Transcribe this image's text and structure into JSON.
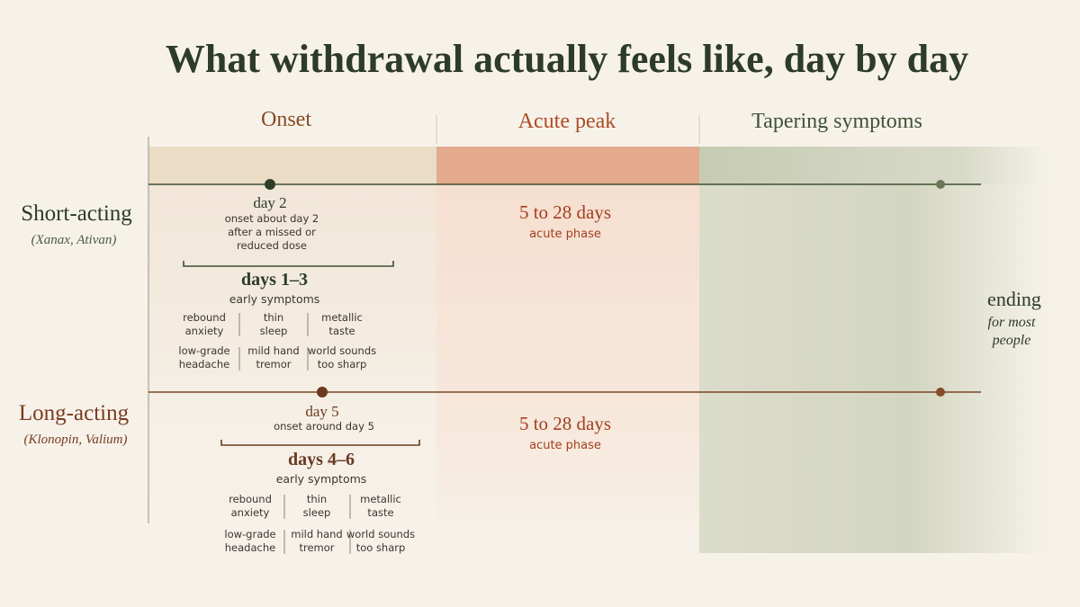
{
  "title": "What withdrawal actually feels like, day by day",
  "phases": [
    "Onset",
    "Acute peak",
    "Tapering symptoms"
  ],
  "rows": [
    {
      "label": "Short-acting",
      "examples": "(Xanax, Ativan)",
      "onset_day": "day 2",
      "onset_note": [
        "onset about day 2",
        "after a missed or",
        "reduced dose"
      ],
      "window": "days 1–3",
      "window_label": "early symptoms",
      "symptoms": [
        [
          "rebound",
          "anxiety"
        ],
        [
          "thin",
          "sleep"
        ],
        [
          "metallic",
          "taste"
        ],
        [
          "low-grade",
          "headache"
        ],
        [
          "mild hand",
          "tremor"
        ],
        [
          "world sounds",
          "too sharp"
        ]
      ],
      "acute": "5 to 28 days",
      "acute_label": "acute phase"
    },
    {
      "label": "Long-acting",
      "examples": "(Klonopin, Valium)",
      "onset_day": "day 5",
      "onset_note": [
        "onset around day 5"
      ],
      "window": "days 4–6",
      "window_label": "early symptoms",
      "symptoms": [
        [
          "rebound",
          "anxiety"
        ],
        [
          "thin",
          "sleep"
        ],
        [
          "metallic",
          "taste"
        ],
        [
          "low-grade",
          "headache"
        ],
        [
          "mild hand",
          "tremor"
        ],
        [
          "world sounds",
          "too sharp"
        ]
      ],
      "acute": "5 to 28 days",
      "acute_label": "acute phase"
    }
  ],
  "ending": {
    "title": "ending",
    "note": [
      "for most",
      "people"
    ]
  }
}
